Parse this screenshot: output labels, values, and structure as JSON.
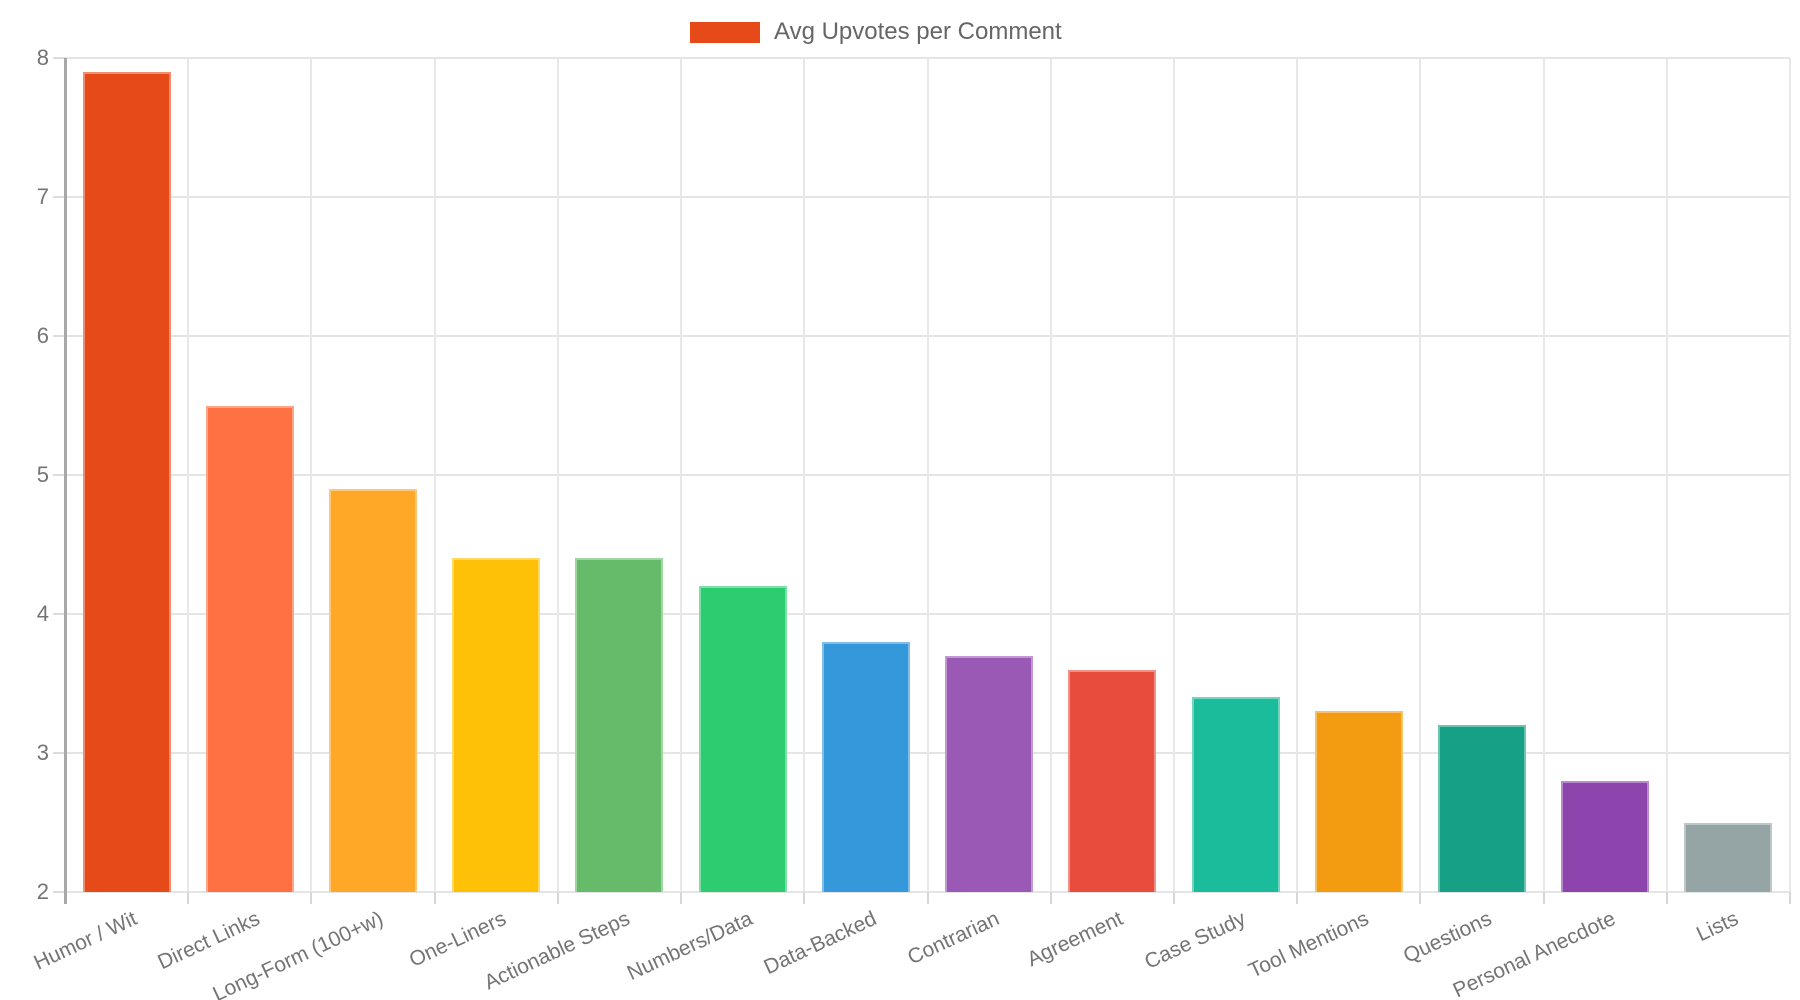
{
  "chart_data": {
    "type": "bar",
    "title": "Avg Upvotes per Comment",
    "legend_position": "top",
    "legend_color": "#e64a19",
    "categories": [
      "Humor / Wit",
      "Direct Links",
      "Long-Form (100+w)",
      "One-Liners",
      "Actionable Steps",
      "Numbers/Data",
      "Data-Backed",
      "Contrarian",
      "Agreement",
      "Case Study",
      "Tool Mentions",
      "Questions",
      "Personal Anecdote",
      "Lists"
    ],
    "values": [
      7.9,
      5.5,
      4.9,
      4.4,
      4.4,
      4.2,
      3.8,
      3.7,
      3.6,
      3.4,
      3.3,
      3.2,
      2.8,
      2.5
    ],
    "bar_colors": [
      "#e64a19",
      "#ff7043",
      "#ffa726",
      "#ffc107",
      "#66bb6a",
      "#2ecc71",
      "#3498db",
      "#9b59b6",
      "#e74c3c",
      "#1abc9c",
      "#f39c12",
      "#16a085",
      "#8e44ad",
      "#95a5a6"
    ],
    "xlabel": "",
    "ylabel": "",
    "ylim": [
      2,
      8
    ],
    "yticks": [
      2,
      3,
      4,
      5,
      6,
      7,
      8
    ],
    "grid": true
  },
  "style": {
    "grid_color": "#e5e5e5",
    "axis_color": "#a8a8a8",
    "tick_text_color": "#747474",
    "legend_text_color": "#666666"
  }
}
